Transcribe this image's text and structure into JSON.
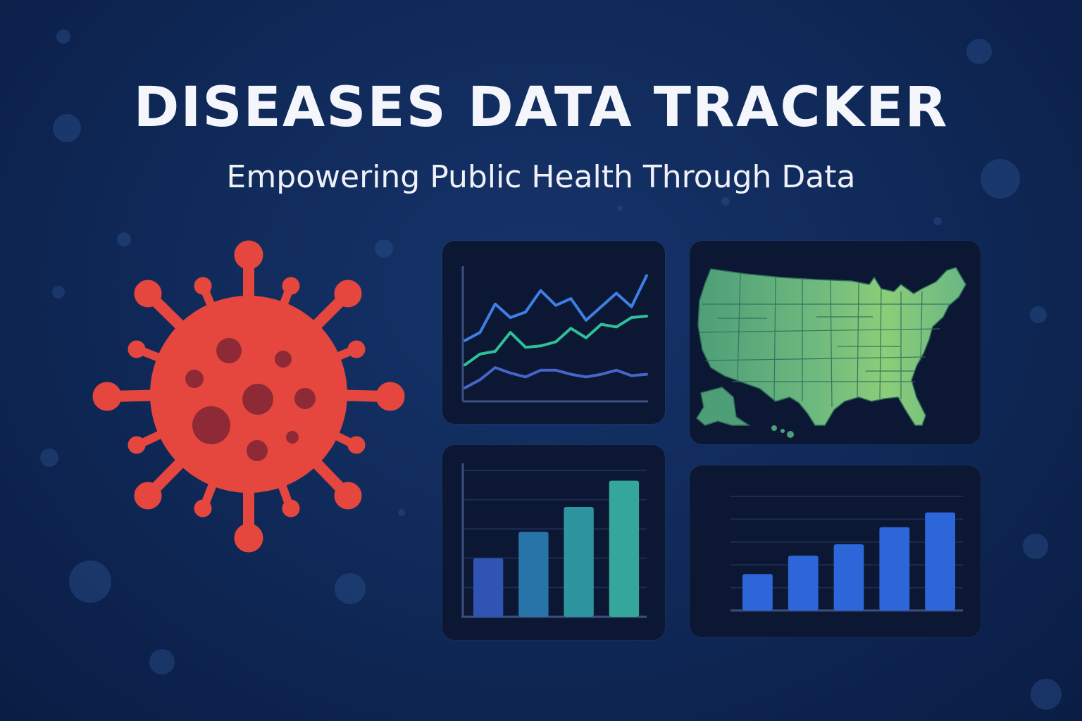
{
  "title": "DISEASES DATA TRACKER",
  "subtitle": "Empowering Public Health Through Data",
  "colors": {
    "background": "#102a5a",
    "virus": "#e5473f",
    "virus_spots": "#8e2a35",
    "panel": "#0b1733",
    "line_series": [
      "#3f7fe4",
      "#2fbf9a",
      "#4565c9"
    ],
    "map_fill": "#5cae7e",
    "bar_chart_1": [
      "#2f54b4",
      "#2874a8",
      "#2d94a0",
      "#34a79a"
    ],
    "bar_chart_2": "#2d66d8"
  },
  "icons": {
    "virus": "virus-icon",
    "map": "us-map-icon"
  },
  "chart_data": [
    {
      "type": "line",
      "title": "",
      "x": [
        0,
        1,
        2,
        3,
        4,
        5,
        6,
        7,
        8,
        9,
        10,
        11,
        12
      ],
      "series": [
        {
          "values": [
            45,
            51,
            72,
            62,
            66,
            82,
            71,
            76,
            60,
            70,
            80,
            70,
            93
          ]
        },
        {
          "values": [
            27,
            35,
            37,
            51,
            40,
            41,
            44,
            54,
            47,
            57,
            55,
            62,
            63
          ]
        },
        {
          "values": [
            10,
            16,
            25,
            21,
            18,
            23,
            23,
            20,
            18,
            20,
            23,
            19,
            20
          ]
        }
      ],
      "ylim": [
        0,
        100
      ],
      "grid": false,
      "legend": "none"
    },
    {
      "type": "bar",
      "title": "",
      "categories": [
        "",
        "",
        "",
        ""
      ],
      "values": [
        40,
        58,
        75,
        93
      ],
      "ylim": [
        0,
        100
      ],
      "grid": true
    },
    {
      "type": "bar",
      "title": "",
      "categories": [
        "",
        "",
        "",
        "",
        ""
      ],
      "values": [
        32,
        48,
        58,
        73,
        86
      ],
      "ylim": [
        0,
        100
      ],
      "grid": true
    }
  ]
}
